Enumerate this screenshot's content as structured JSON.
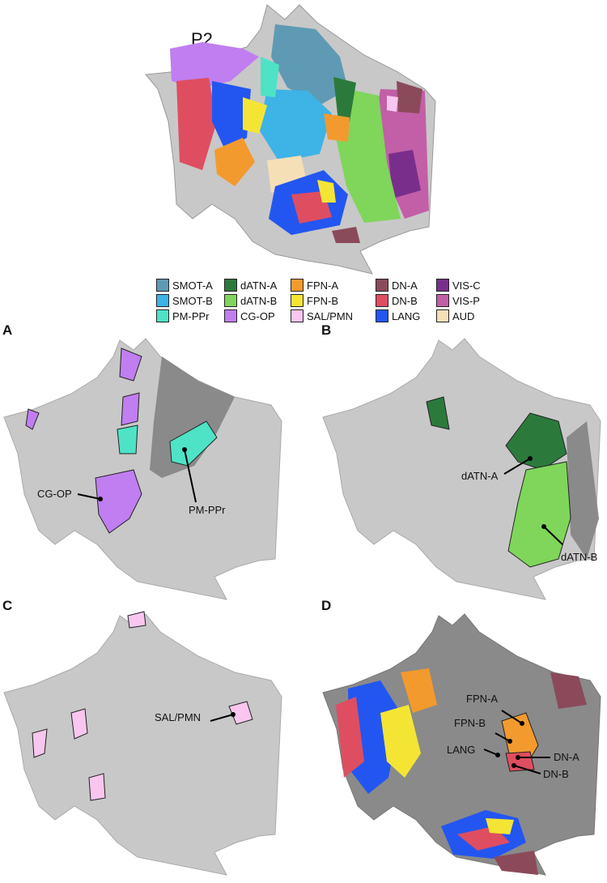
{
  "title": "P2",
  "legend": [
    {
      "label": "SMOT-A",
      "color": "#5f9ab4"
    },
    {
      "label": "SMOT-B",
      "color": "#3db3e6"
    },
    {
      "label": "PM-PPr",
      "color": "#4ee3c6"
    },
    {
      "label": "dATN-A",
      "color": "#2b7a3c"
    },
    {
      "label": "dATN-B",
      "color": "#7fd65a"
    },
    {
      "label": "CG-OP",
      "color": "#c07ef0"
    },
    {
      "label": "FPN-A",
      "color": "#f39a2e"
    },
    {
      "label": "FPN-B",
      "color": "#f4e534"
    },
    {
      "label": "SAL/PMN",
      "color": "#f8c6ef"
    },
    {
      "label": "DN-A",
      "color": "#8a4a5a"
    },
    {
      "label": "DN-B",
      "color": "#de4e60"
    },
    {
      "label": "LANG",
      "color": "#2356f0"
    },
    {
      "label": "VIS-C",
      "color": "#7a2e8c"
    },
    {
      "label": "VIS-P",
      "color": "#c25fa6"
    },
    {
      "label": "AUD",
      "color": "#f5dfb7"
    }
  ],
  "panels": {
    "A": {
      "letter": "A",
      "labels": [
        "PM-PPr",
        "CG-OP"
      ]
    },
    "B": {
      "letter": "B",
      "labels": [
        "dATN-A",
        "dATN-B"
      ]
    },
    "C": {
      "letter": "C",
      "labels": [
        "SAL/PMN"
      ]
    },
    "D": {
      "letter": "D",
      "labels": [
        "FPN-A",
        "FPN-B",
        "LANG",
        "DN-A",
        "DN-B"
      ]
    }
  },
  "colors": {
    "cortex": "#c8c8c8",
    "highlight_bg": "#8a8a8a",
    "background": "#ffffff"
  }
}
